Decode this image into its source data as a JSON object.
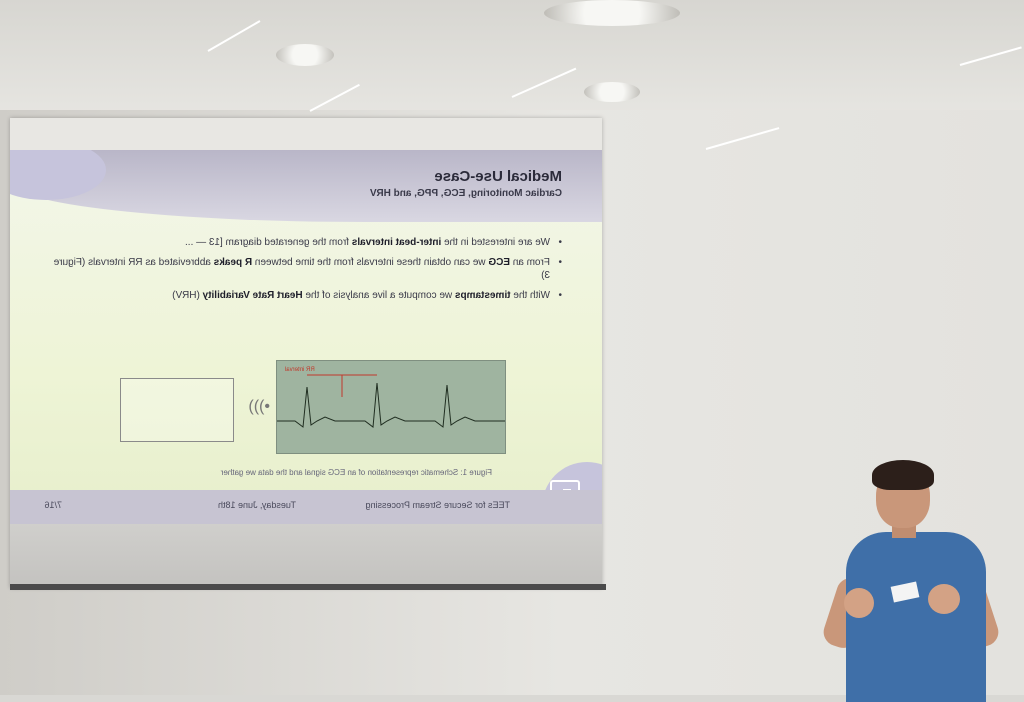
{
  "slide": {
    "title": "Medical Use-Case",
    "subtitle": "Cardiac Monitoring, ECG, PPG, and HRV",
    "bullets": [
      "We are interested in the inter-beat intervals from the generated diagram [13 — ...",
      "From an ECG we can obtain these intervals from the time between R peaks abbreviated as RR intervals (Figure 3)",
      "With the timestamps we compute a live analysis of the Heart Rate Variability (HRV)"
    ],
    "bullet_emphasis": [
      "inter-beat intervals",
      "ECG",
      "R peaks",
      "timestamps",
      "Heart Rate Variability"
    ],
    "figure_caption": "Figure 1: Schematic representation of an ECG signal and the data we gather",
    "ecg_label": "RR interval",
    "footer": {
      "talk_title": "TEEs for Secure Stream Processing",
      "date": "Tuesday, June 18th",
      "page": "7/16"
    }
  },
  "colors": {
    "slide_background": "#eef4d6",
    "slide_accent": "#c6c4dc",
    "shirt": "#3f6fa8"
  }
}
